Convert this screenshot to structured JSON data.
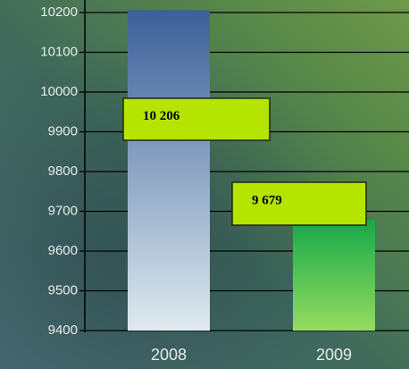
{
  "chart_data": {
    "type": "bar",
    "categories": [
      "2008",
      "2009"
    ],
    "values": [
      10206,
      9679
    ],
    "value_labels": [
      "10 206",
      "9 679"
    ],
    "bar_colors": [
      [
        "#3b5f99",
        "#dfeaf0"
      ],
      [
        "#14a84a",
        "#96dc5e"
      ]
    ],
    "label_box_color": "#b4e400",
    "ylim": [
      9400,
      10200
    ],
    "yticks": [
      9400,
      9500,
      9600,
      9700,
      9800,
      9900,
      10000,
      10100,
      10200
    ],
    "grid": true
  }
}
